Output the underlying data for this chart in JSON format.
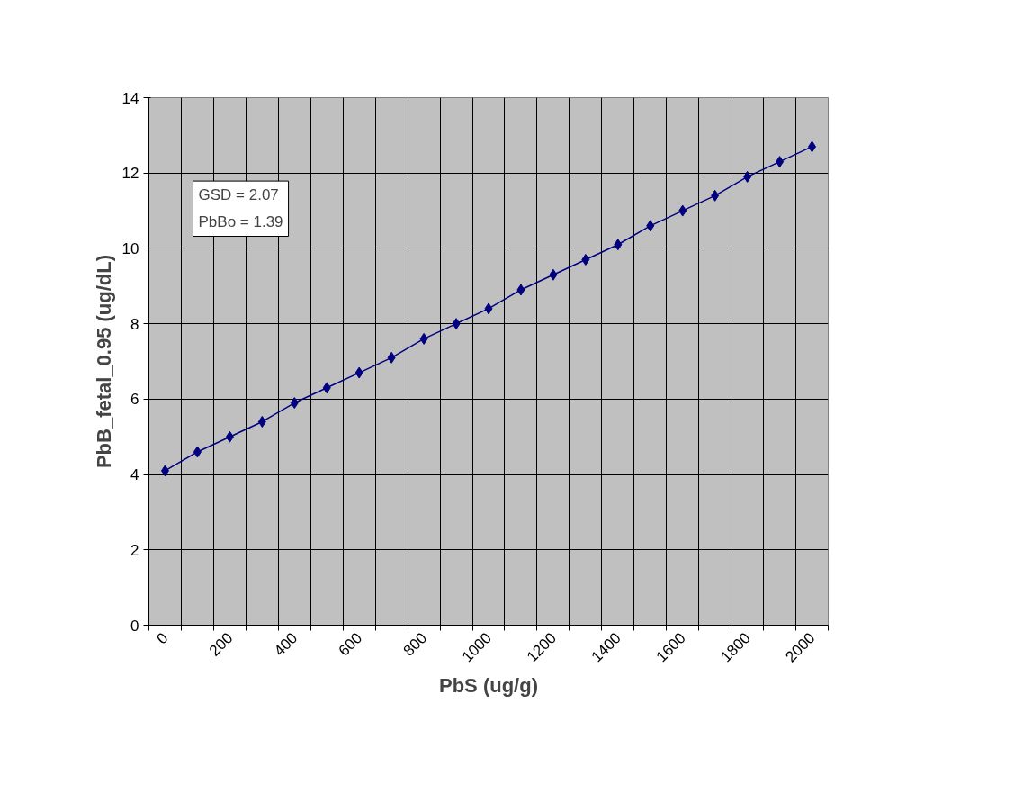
{
  "chart_data": {
    "type": "line",
    "xlabel": "PbS (ug/g)",
    "ylabel": "PbB_fetal_0.95 (ug/dL)",
    "categories": [
      "0",
      null,
      "200",
      null,
      "400",
      null,
      "600",
      null,
      "800",
      null,
      "1000",
      null,
      "1200",
      null,
      "1400",
      null,
      "1600",
      null,
      "1800",
      null,
      "2000"
    ],
    "series": [
      {
        "color": "#000080",
        "values": [
          4.1,
          4.6,
          5.0,
          5.4,
          5.9,
          6.3,
          6.7,
          7.1,
          7.6,
          8.0,
          8.4,
          8.9,
          9.3,
          9.7,
          10.1,
          10.6,
          11.0,
          11.4,
          11.9,
          12.3,
          12.7
        ]
      }
    ],
    "ylim": [
      0,
      14
    ],
    "yticks": [
      0,
      2,
      4,
      6,
      8,
      10,
      12,
      14
    ],
    "annotations": [
      "GSD = 2.07",
      "PbBo = 1.39"
    ],
    "grid": true,
    "marker": "diamond",
    "line_style": "solid"
  }
}
